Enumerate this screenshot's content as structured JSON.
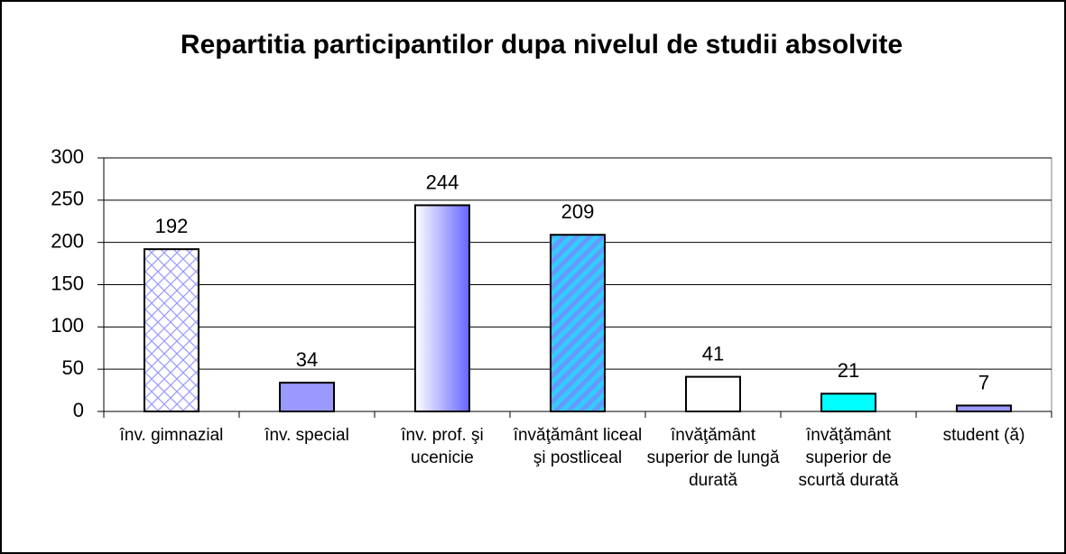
{
  "chart_data": {
    "type": "bar",
    "title": "Repartitia participantilor dupa nivelul de studii absolvite",
    "categories": [
      "înv. gimnazial",
      "înv. special",
      "înv. prof. şi ucenicie",
      "învăţământ liceal şi postliceal",
      "învăţământ superior de lungă durată",
      "învăţământ superior de scurtă durată",
      "student (ă)"
    ],
    "values": [
      192,
      34,
      244,
      209,
      41,
      21,
      7
    ],
    "colors": [
      "#9999ff",
      "#9999ff",
      "#6666ff",
      "#33ccff",
      "#ffffff",
      "#00ffff",
      "#9999ff"
    ],
    "fills": [
      "crosshatch",
      "solid",
      "gradient",
      "stripes",
      "solid",
      "solid",
      "solid"
    ],
    "ylim": [
      0,
      300
    ],
    "yticks": [
      0,
      50,
      100,
      150,
      200,
      250,
      300
    ],
    "grid": true
  }
}
